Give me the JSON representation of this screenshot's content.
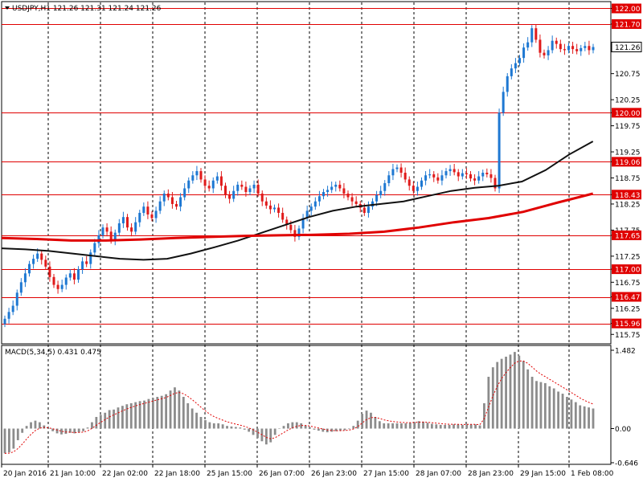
{
  "window": {
    "symbol_header": "USDJPY,H1  121.26 121.31 121.24 121.26",
    "macd_header": "MACD(5,34,5) 0.431 0.475"
  },
  "colors": {
    "bull": "#1e78d2",
    "bear": "#e01a1a",
    "level_line": "#e00000",
    "level_label_bg": "#e00000",
    "ma_fast": "#111111",
    "ma_slow": "#e00000",
    "macd_hist": "#8c8c8c",
    "macd_signal": "#e00000",
    "grid": "#000000"
  },
  "chart_data": [
    {
      "type": "candlestick",
      "symbol": "USDJPY",
      "timeframe": "H1",
      "ylim": [
        115.6,
        122.1
      ],
      "y_ticks": [
        122.0,
        121.7,
        121.26,
        120.75,
        120.25,
        120.0,
        119.75,
        119.25,
        119.06,
        118.75,
        118.43,
        118.25,
        117.75,
        117.65,
        117.25,
        117.0,
        116.75,
        116.47,
        116.25,
        115.96,
        115.75
      ],
      "y_tick_labels": [
        "122.00",
        "121.70",
        "121.26",
        "120.75",
        "120.25",
        "120.00",
        "119.75",
        "119.25",
        "119.06",
        "118.75",
        "118.43",
        "118.25",
        "117.75",
        "117.65",
        "117.25",
        "117.00",
        "116.75",
        "116.47",
        "116.25",
        "115.96",
        "115.75"
      ],
      "current_price": 121.26,
      "levels": [
        122.0,
        121.7,
        120.0,
        119.06,
        118.43,
        117.65,
        117.0,
        116.47,
        115.96
      ],
      "x_tick_labels": [
        "20 Jan 2016",
        "21 Jan 10:00",
        "22 Jan 02:00",
        "22 Jan 18:00",
        "25 Jan 15:00",
        "26 Jan 07:00",
        "26 Jan 23:00",
        "27 Jan 15:00",
        "28 Jan 07:00",
        "28 Jan 23:00",
        "29 Jan 15:00",
        "1 Feb 08:00"
      ],
      "close": [
        116.05,
        116.18,
        116.3,
        116.55,
        116.75,
        116.92,
        117.1,
        117.2,
        117.3,
        117.18,
        117.05,
        116.85,
        116.7,
        116.62,
        116.7,
        116.84,
        116.92,
        116.8,
        117.0,
        117.15,
        117.1,
        117.32,
        117.5,
        117.65,
        117.8,
        117.72,
        117.55,
        117.7,
        117.88,
        118.0,
        117.8,
        117.72,
        117.9,
        118.08,
        118.2,
        118.05,
        117.98,
        118.12,
        118.3,
        118.45,
        118.38,
        118.25,
        118.2,
        118.38,
        118.55,
        118.7,
        118.8,
        118.88,
        118.72,
        118.6,
        118.55,
        118.7,
        118.78,
        118.6,
        118.42,
        118.35,
        118.5,
        118.62,
        118.58,
        118.48,
        118.55,
        118.62,
        118.45,
        118.3,
        118.22,
        118.15,
        118.18,
        118.08,
        117.95,
        117.85,
        117.75,
        117.62,
        117.78,
        117.98,
        118.12,
        118.2,
        118.3,
        118.4,
        118.48,
        118.52,
        118.58,
        118.62,
        118.55,
        118.45,
        118.38,
        118.3,
        118.25,
        118.18,
        118.08,
        118.2,
        118.3,
        118.42,
        118.5,
        118.65,
        118.8,
        118.92,
        118.95,
        118.85,
        118.72,
        118.6,
        118.5,
        118.58,
        118.7,
        118.8,
        118.82,
        118.76,
        118.7,
        118.8,
        118.88,
        118.92,
        118.86,
        118.78,
        118.84,
        118.82,
        118.74,
        118.7,
        118.78,
        118.85,
        118.82,
        118.75,
        118.55,
        120.0,
        120.4,
        120.7,
        120.85,
        120.95,
        121.05,
        121.25,
        121.35,
        121.62,
        121.4,
        121.15,
        121.1,
        121.2,
        121.38,
        121.32,
        121.22,
        121.2,
        121.28,
        121.22,
        121.18,
        121.24,
        121.28,
        121.2,
        121.26
      ],
      "ma_fast": [
        117.4,
        117.38,
        117.35,
        117.3,
        117.25,
        117.2,
        117.18,
        117.2,
        117.3,
        117.42,
        117.55,
        117.7,
        117.85,
        118.0,
        118.12,
        118.2,
        118.25,
        118.3,
        118.4,
        118.5,
        118.56,
        118.6,
        118.68,
        118.9,
        119.2,
        119.45
      ],
      "ma_slow": [
        117.6,
        117.58,
        117.55,
        117.55,
        117.57,
        117.6,
        117.62,
        117.64,
        117.65,
        117.66,
        117.68,
        117.72,
        117.8,
        117.9,
        117.98,
        118.1,
        118.28,
        118.45
      ],
      "series": [
        {
          "name": "",
          "values": [],
          "role": "moving average fast (black)"
        },
        {
          "name": "",
          "values": [],
          "role": "moving average slow (red)"
        }
      ]
    },
    {
      "type": "bar",
      "indicator": "MACD(5,34,5)",
      "macd_value": 0.431,
      "signal_value": 0.475,
      "ylim": [
        -0.646,
        1.482
      ],
      "y_tick_labels": [
        "1.482",
        "0.00",
        "-0.646"
      ],
      "histogram": [
        -0.47,
        -0.45,
        -0.38,
        -0.22,
        -0.08,
        0.05,
        0.12,
        0.15,
        0.12,
        0.06,
        0.0,
        -0.05,
        -0.09,
        -0.11,
        -0.1,
        -0.08,
        -0.09,
        -0.07,
        -0.05,
        0.02,
        0.12,
        0.22,
        0.26,
        0.3,
        0.35,
        0.36,
        0.4,
        0.43,
        0.46,
        0.48,
        0.5,
        0.52,
        0.53,
        0.56,
        0.58,
        0.6,
        0.62,
        0.65,
        0.72,
        0.78,
        0.72,
        0.6,
        0.48,
        0.38,
        0.3,
        0.22,
        0.16,
        0.12,
        0.1,
        0.1,
        0.08,
        0.05,
        0.04,
        0.03,
        0.02,
        -0.02,
        -0.06,
        -0.12,
        -0.18,
        -0.24,
        -0.3,
        -0.26,
        -0.12,
        0.0,
        0.05,
        0.1,
        0.12,
        0.12,
        0.1,
        0.06,
        0.02,
        -0.02,
        -0.04,
        -0.06,
        -0.07,
        -0.06,
        -0.05,
        -0.04,
        -0.03,
        -0.01,
        0.05,
        0.15,
        0.28,
        0.34,
        0.3,
        0.22,
        0.14,
        0.1,
        0.1,
        0.1,
        0.1,
        0.1,
        0.1,
        0.11,
        0.12,
        0.14,
        0.13,
        0.11,
        0.09,
        0.08,
        0.07,
        0.07,
        0.07,
        0.08,
        0.08,
        0.07,
        0.08,
        0.08,
        0.08,
        0.06,
        0.48,
        0.98,
        1.16,
        1.26,
        1.32,
        1.36,
        1.4,
        1.45,
        1.38,
        1.28,
        1.12,
        0.98,
        0.9,
        0.88,
        0.86,
        0.8,
        0.76,
        0.7,
        0.66,
        0.6,
        0.55,
        0.5,
        0.44,
        0.42,
        0.4,
        0.38
      ],
      "series": [
        {
          "name": "",
          "values": [],
          "role": "signal line (red dotted)"
        }
      ]
    }
  ]
}
